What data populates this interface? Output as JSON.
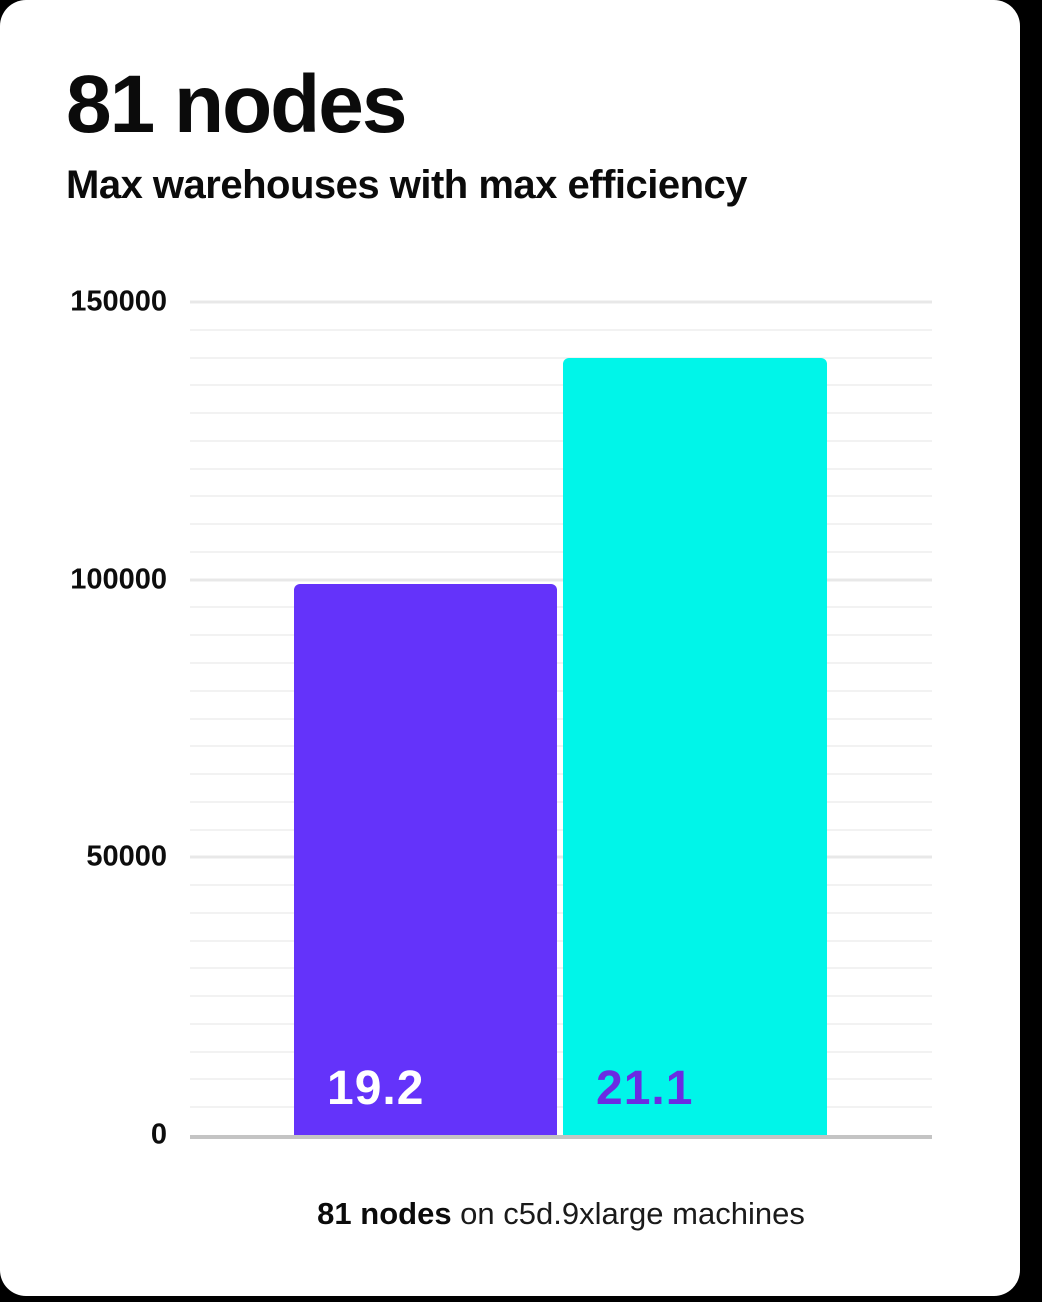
{
  "page": {
    "background": "#000000",
    "card_background": "#ffffff"
  },
  "header": {
    "title": "81 nodes",
    "subtitle": "Max warehouses with max efficiency"
  },
  "caption": {
    "bold": "81 nodes",
    "rest": " on c5d.9xlarge machines"
  },
  "chart_data": {
    "type": "bar",
    "title": "81 nodes",
    "subtitle": "Max warehouses with max efficiency",
    "categories": [
      "19.2",
      "21.1"
    ],
    "series": [
      {
        "name": "bar-1",
        "value": 99300,
        "label": "19.2",
        "color": "#6433fa",
        "label_color": "#ffffff"
      },
      {
        "name": "bar-2",
        "value": 140000,
        "label": "21.1",
        "color": "#00f5e9",
        "label_color": "#6b2be2"
      }
    ],
    "xlabel": "",
    "ylabel": "",
    "ylim": [
      0,
      150000
    ],
    "yticks": [
      0,
      50000,
      100000,
      150000
    ],
    "minor_grid_step": 5000,
    "major_grid_step": 50000,
    "grid": true,
    "legend": false,
    "axis_colors": {
      "minor_grid": "#f2f2f2",
      "major_grid": "#e8e8e8",
      "baseline": "#c4c4c4"
    }
  }
}
